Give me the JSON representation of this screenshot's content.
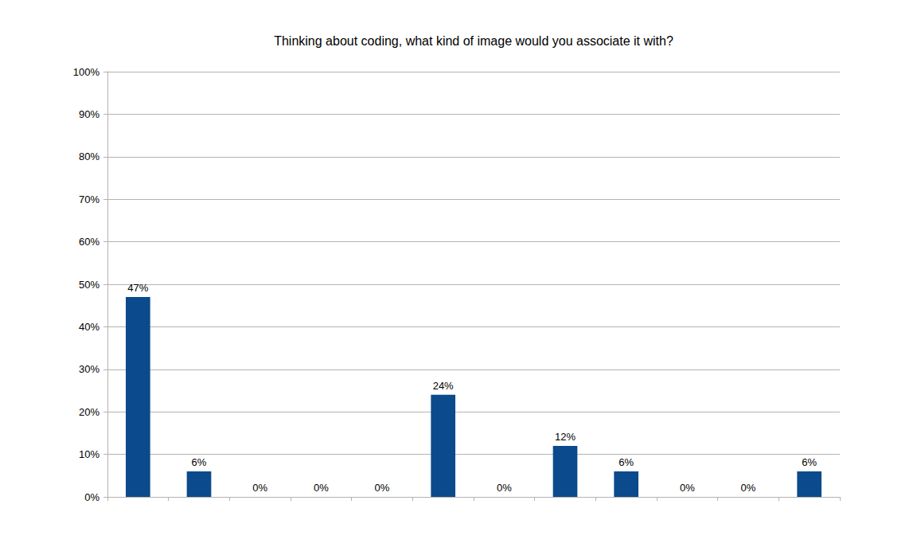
{
  "chart_data": {
    "type": "bar",
    "title": "Thinking about coding, what kind of image would you associate it with?",
    "categories": [
      null,
      null,
      null,
      null,
      null,
      null,
      null,
      null,
      null,
      null,
      null,
      null
    ],
    "values": [
      47,
      6,
      0,
      0,
      0,
      24,
      0,
      12,
      6,
      0,
      0,
      6
    ],
    "value_labels": [
      "47%",
      "6%",
      "0%",
      "0%",
      "0%",
      "24%",
      "0%",
      "12%",
      "6%",
      "0%",
      "0%",
      "6%"
    ],
    "color": "#0b4a8c",
    "ylim": [
      0,
      100
    ],
    "yticks": [
      {
        "value": 0,
        "label": "0%"
      },
      {
        "value": 10,
        "label": "10%"
      },
      {
        "value": 20,
        "label": "20%"
      },
      {
        "value": 30,
        "label": "30%"
      },
      {
        "value": 40,
        "label": "40%"
      },
      {
        "value": 50,
        "label": "50%"
      },
      {
        "value": 60,
        "label": "60%"
      },
      {
        "value": 70,
        "label": "70%"
      },
      {
        "value": 80,
        "label": "80%"
      },
      {
        "value": 90,
        "label": "90%"
      },
      {
        "value": 100,
        "label": "100%"
      }
    ],
    "grid": true,
    "data_labels": true,
    "tick_labels": "y"
  }
}
